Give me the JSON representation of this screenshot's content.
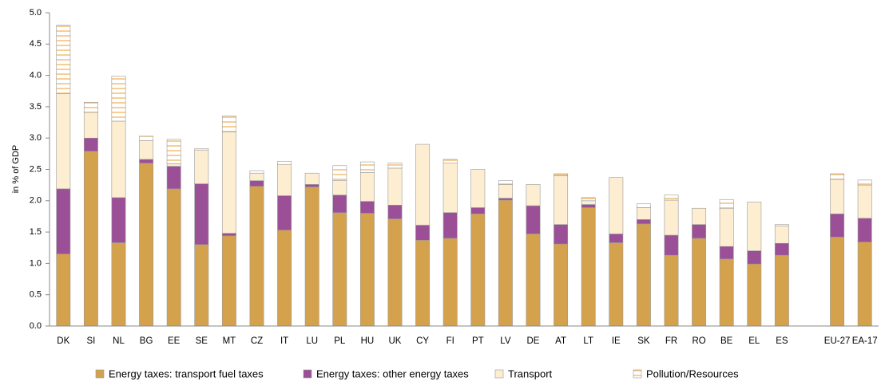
{
  "chart_data": {
    "type": "stacked_bar",
    "y_label": "in % of GDP",
    "categories": [
      "DK",
      "SI",
      "NL",
      "BG",
      "EE",
      "SE",
      "MT",
      "CZ",
      "IT",
      "LU",
      "PL",
      "HU",
      "UK",
      "CY",
      "FI",
      "PT",
      "LV",
      "DE",
      "AT",
      "LT",
      "IE",
      "SK",
      "FR",
      "RO",
      "BE",
      "EL",
      "ES",
      null,
      "EU-27",
      "EA-17"
    ],
    "series": [
      {
        "name": "Energy taxes: transport fuel taxes",
        "color": "#d4a24c",
        "values": [
          1.15,
          2.79,
          1.33,
          2.6,
          2.19,
          1.3,
          1.44,
          2.23,
          1.53,
          2.22,
          1.81,
          1.8,
          1.71,
          1.37,
          1.4,
          1.79,
          2.01,
          1.47,
          1.31,
          1.89,
          1.33,
          1.63,
          1.13,
          1.4,
          1.07,
          0.99,
          1.13,
          null,
          1.42,
          1.34
        ]
      },
      {
        "name": "Energy taxes: other energy taxes",
        "color": "#9b4f96",
        "values": [
          1.04,
          0.21,
          0.72,
          0.06,
          0.36,
          0.97,
          0.04,
          0.09,
          0.55,
          0.04,
          0.28,
          0.19,
          0.22,
          0.24,
          0.41,
          0.1,
          0.03,
          0.45,
          0.31,
          0.05,
          0.14,
          0.07,
          0.32,
          0.22,
          0.2,
          0.21,
          0.19,
          null,
          0.37,
          0.38
        ]
      },
      {
        "name": "Transport",
        "color": "#fdeed2",
        "values": [
          1.52,
          0.41,
          1.22,
          0.3,
          0.04,
          0.54,
          1.62,
          0.12,
          0.5,
          0.18,
          0.23,
          0.46,
          0.59,
          1.29,
          0.79,
          0.61,
          0.22,
          0.34,
          0.78,
          0.06,
          0.9,
          0.19,
          0.56,
          0.26,
          0.61,
          0.78,
          0.28,
          null,
          0.55,
          0.53
        ]
      },
      {
        "name": "Pollution/Resources",
        "color": "#f5c27a",
        "hatch": "horizontal",
        "values": [
          1.09,
          0.16,
          0.72,
          0.07,
          0.39,
          0.02,
          0.25,
          0.04,
          0.05,
          0,
          0.24,
          0.17,
          0.08,
          0,
          0.06,
          0,
          0.06,
          0,
          0.03,
          0.05,
          0,
          0.06,
          0.08,
          0,
          0.14,
          0,
          0.02,
          null,
          0.09,
          0.08
        ]
      }
    ],
    "ylim": [
      0,
      5
    ],
    "yticks": [
      {
        "value": 0,
        "label": "0.0"
      },
      0.5,
      {
        "value": 1,
        "label": "1.0"
      },
      1.5,
      {
        "value": 2,
        "label": "2.0"
      },
      2.5,
      {
        "value": 3,
        "label": "3.0"
      },
      3.5,
      {
        "value": 4,
        "label": "4.0"
      },
      4.5,
      {
        "value": 5,
        "label": "5.0"
      }
    ],
    "legend": "bottom"
  }
}
